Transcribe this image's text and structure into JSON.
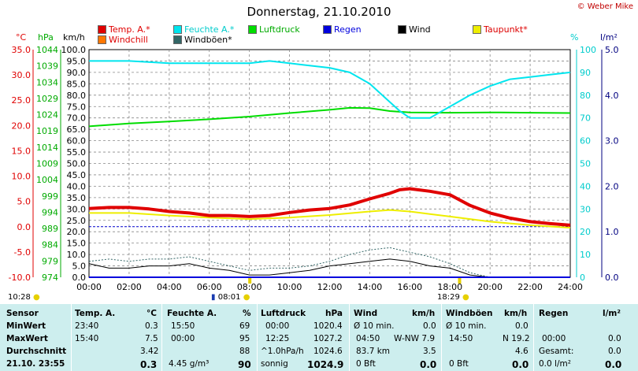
{
  "header": {
    "title": "Donnerstag, 21.10.2010",
    "copyright": "© Weber Mike"
  },
  "legend": [
    {
      "label": "Temp. A.*",
      "color": "#e00000"
    },
    {
      "label": "Feuchte A.*",
      "color": "#00e5ee"
    },
    {
      "label": "Luftdruck",
      "color": "#00dd00"
    },
    {
      "label": "Regen",
      "color": "#0000dd"
    },
    {
      "label": "Wind",
      "color": "#000000"
    },
    {
      "label": "Taupunkt*",
      "color": "#eeee00"
    },
    {
      "label": "Windchill",
      "color": "#ff7700"
    },
    {
      "label": "Windböen*",
      "color": "#336666"
    }
  ],
  "axis_units": {
    "temp": "°C",
    "pressure": "hPa",
    "wind": "km/h",
    "humidity": "%",
    "rain": "l/m²"
  },
  "chart_data": {
    "type": "line",
    "title": "Donnerstag, 21.10.2010",
    "x_label": "",
    "x_ticks": [
      "00:00",
      "02:00",
      "04:00",
      "06:00",
      "08:00",
      "10:00",
      "12:00",
      "14:00",
      "16:00",
      "18:00",
      "20:00",
      "22:00",
      "24:00"
    ],
    "xlim": [
      0,
      24
    ],
    "axes": {
      "temp": {
        "unit": "°C",
        "range": [
          -10,
          35
        ],
        "ticks": [
          "-10.0",
          "-5.0",
          "0.0",
          "5.0",
          "10.0",
          "15.0",
          "20.0",
          "25.0",
          "30.0",
          "35.0"
        ],
        "color": "#e00000"
      },
      "pressure": {
        "unit": "hPa",
        "range": [
          974,
          1044
        ],
        "ticks": [
          "974",
          "979",
          "984",
          "989",
          "994",
          "999",
          "1004",
          "1009",
          "1014",
          "1019",
          "1024",
          "1029",
          "1034",
          "1039",
          "1044"
        ],
        "color": "#00aa00"
      },
      "wind": {
        "unit": "km/h",
        "range": [
          0,
          100
        ],
        "ticks": [
          "0.0",
          "5.0",
          "10.0",
          "15.0",
          "20.0",
          "25.0",
          "30.0",
          "35.0",
          "40.0",
          "45.0",
          "50.0",
          "55.0",
          "60.0",
          "65.0",
          "70.0",
          "75.0",
          "80.0",
          "85.0",
          "90.0",
          "95.0",
          "100.0"
        ],
        "color": "#000000"
      },
      "humidity": {
        "unit": "%",
        "range": [
          0,
          100
        ],
        "ticks": [
          "0",
          "10",
          "20",
          "30",
          "40",
          "50",
          "60",
          "70",
          "80",
          "90",
          "100"
        ],
        "color": "#00cccc"
      },
      "rain": {
        "unit": "l/m²",
        "range": [
          0,
          5
        ],
        "ticks": [
          "0.0",
          "1.0",
          "2.0",
          "3.0",
          "4.0",
          "5.0"
        ],
        "color": "#000080"
      }
    },
    "series": [
      {
        "name": "Temp. A.*",
        "axis": "temp",
        "color": "#e00000",
        "x": [
          0,
          1,
          2,
          3,
          4,
          5,
          6,
          7,
          8,
          9,
          10,
          11,
          12,
          13,
          14,
          15,
          15.5,
          16,
          17,
          18,
          19,
          20,
          21,
          22,
          23,
          24
        ],
        "y": [
          3.6,
          3.8,
          3.8,
          3.5,
          3.0,
          2.7,
          2.2,
          2.2,
          2.0,
          2.2,
          2.8,
          3.3,
          3.6,
          4.3,
          5.5,
          6.6,
          7.3,
          7.5,
          7.0,
          6.3,
          4.2,
          2.7,
          1.7,
          1.0,
          0.6,
          0.3
        ]
      },
      {
        "name": "Feuchte A.*",
        "axis": "humidity",
        "color": "#00e5ee",
        "x": [
          0,
          2,
          4,
          6,
          8,
          9,
          10,
          11,
          12,
          13,
          14,
          14.5,
          15,
          15.5,
          16,
          17,
          18,
          19,
          20,
          21,
          22,
          23,
          24
        ],
        "y": [
          95,
          95,
          94,
          94,
          94,
          95,
          94,
          93,
          92,
          90,
          85,
          81,
          77,
          73,
          70,
          70,
          75,
          80,
          84,
          87,
          88,
          89,
          90
        ]
      },
      {
        "name": "Luftdruck",
        "axis": "pressure",
        "color": "#00dd00",
        "x": [
          0,
          2,
          4,
          6,
          8,
          10,
          12,
          13,
          14,
          15,
          16,
          18,
          20,
          22,
          24
        ],
        "y": [
          1020.4,
          1021.3,
          1021.9,
          1022.6,
          1023.4,
          1024.5,
          1025.5,
          1026.1,
          1026.0,
          1025.1,
          1024.7,
          1024.6,
          1024.7,
          1024.6,
          1024.5
        ]
      },
      {
        "name": "Taupunkt*",
        "axis": "temp",
        "color": "#eeee00",
        "x": [
          0,
          2,
          4,
          6,
          8,
          10,
          12,
          14,
          15,
          16,
          17,
          18,
          20,
          22,
          24
        ],
        "y": [
          2.7,
          2.7,
          2.2,
          1.8,
          1.5,
          1.8,
          2.3,
          3.0,
          3.3,
          3.0,
          2.5,
          2.0,
          1.0,
          0.3,
          -0.2
        ]
      },
      {
        "name": "Wind",
        "axis": "wind",
        "color": "#000000",
        "x": [
          0,
          1,
          2,
          3,
          4,
          5,
          6,
          7,
          8,
          9,
          10,
          11,
          12,
          13,
          14,
          15,
          16,
          17,
          18,
          19,
          20,
          21,
          22,
          23,
          24
        ],
        "y": [
          6,
          4,
          4,
          5,
          5,
          6,
          4,
          3,
          1,
          1,
          2,
          3,
          5,
          6,
          7,
          8,
          7,
          5,
          4,
          1,
          0,
          0,
          0,
          0,
          0
        ]
      },
      {
        "name": "Windböen*",
        "axis": "wind",
        "color": "#336666",
        "x": [
          0,
          1,
          2,
          3,
          4,
          5,
          6,
          7,
          8,
          9,
          10,
          11,
          12,
          13,
          14,
          15,
          16,
          17,
          18,
          19,
          20,
          21,
          22,
          23,
          24
        ],
        "y": [
          7,
          8,
          7,
          8,
          8,
          9,
          7,
          5,
          3,
          4,
          4,
          5,
          7,
          10,
          12,
          13,
          11,
          9,
          6,
          2,
          0,
          0,
          0,
          0,
          0
        ]
      }
    ],
    "reference_lines": [
      {
        "axis": "temp",
        "value": 0,
        "color": "#0000cc",
        "style": "dashed"
      }
    ],
    "grid": true
  },
  "sun": {
    "sunrise": "08:01",
    "sunset": "18:29",
    "left_time": "10:28"
  },
  "stats": {
    "headers": {
      "sensor": "Sensor",
      "temp": "Temp. A.",
      "temp_unit": "°C",
      "hum": "Feuchte A.",
      "hum_unit": "%",
      "pres": "Luftdruck",
      "pres_unit": "hPa",
      "wind": "Wind",
      "wind_unit": "km/h",
      "gust": "Windböen",
      "gust_unit": "km/h",
      "rain": "Regen",
      "rain_unit": "l/m²"
    },
    "rows": {
      "min": {
        "label": "MinWert",
        "temp_time": "23:40",
        "temp": "0.3",
        "hum_time": "15:50",
        "hum": "69",
        "pres_time": "00:00",
        "pres": "1020.4",
        "wind_time": "Ø 10 min.",
        "wind": "0.0",
        "gust_time": "Ø 10 min.",
        "gust": "0.0",
        "rain_time": "",
        "rain": ""
      },
      "max": {
        "label": "MaxWert",
        "temp_time": "15:40",
        "temp": "7.5",
        "hum_time": "00:00",
        "hum": "95",
        "pres_time": "12:25",
        "pres": "1027.2",
        "wind_time": "04:50",
        "wind_dir": "W-NW 7.9",
        "gust_time": "14:50",
        "gust": "N 19.2",
        "rain_time": "00:00",
        "rain": "0.0"
      },
      "avg": {
        "label": "Durchschnitt",
        "temp": "3.42",
        "hum": "88",
        "pres_time": "^1.0hPa/h",
        "pres": "1024.6",
        "wind_time": "83.7 km",
        "wind": "3.5",
        "gust": "4.6",
        "rain_time": "Gesamt:",
        "rain": "0.0"
      },
      "current": {
        "label": "21.10. 23:55",
        "temp": "0.3",
        "hum_time": "4.45 g/m³",
        "hum": "90",
        "pres_time": "sonnig",
        "pres": "1024.9",
        "wind_time": "0 Bft",
        "wind": "0.0",
        "gust_time": "0 Bft",
        "gust": "0.0",
        "rain_time": "0.0 l/m²",
        "rain": "0.0"
      }
    }
  }
}
